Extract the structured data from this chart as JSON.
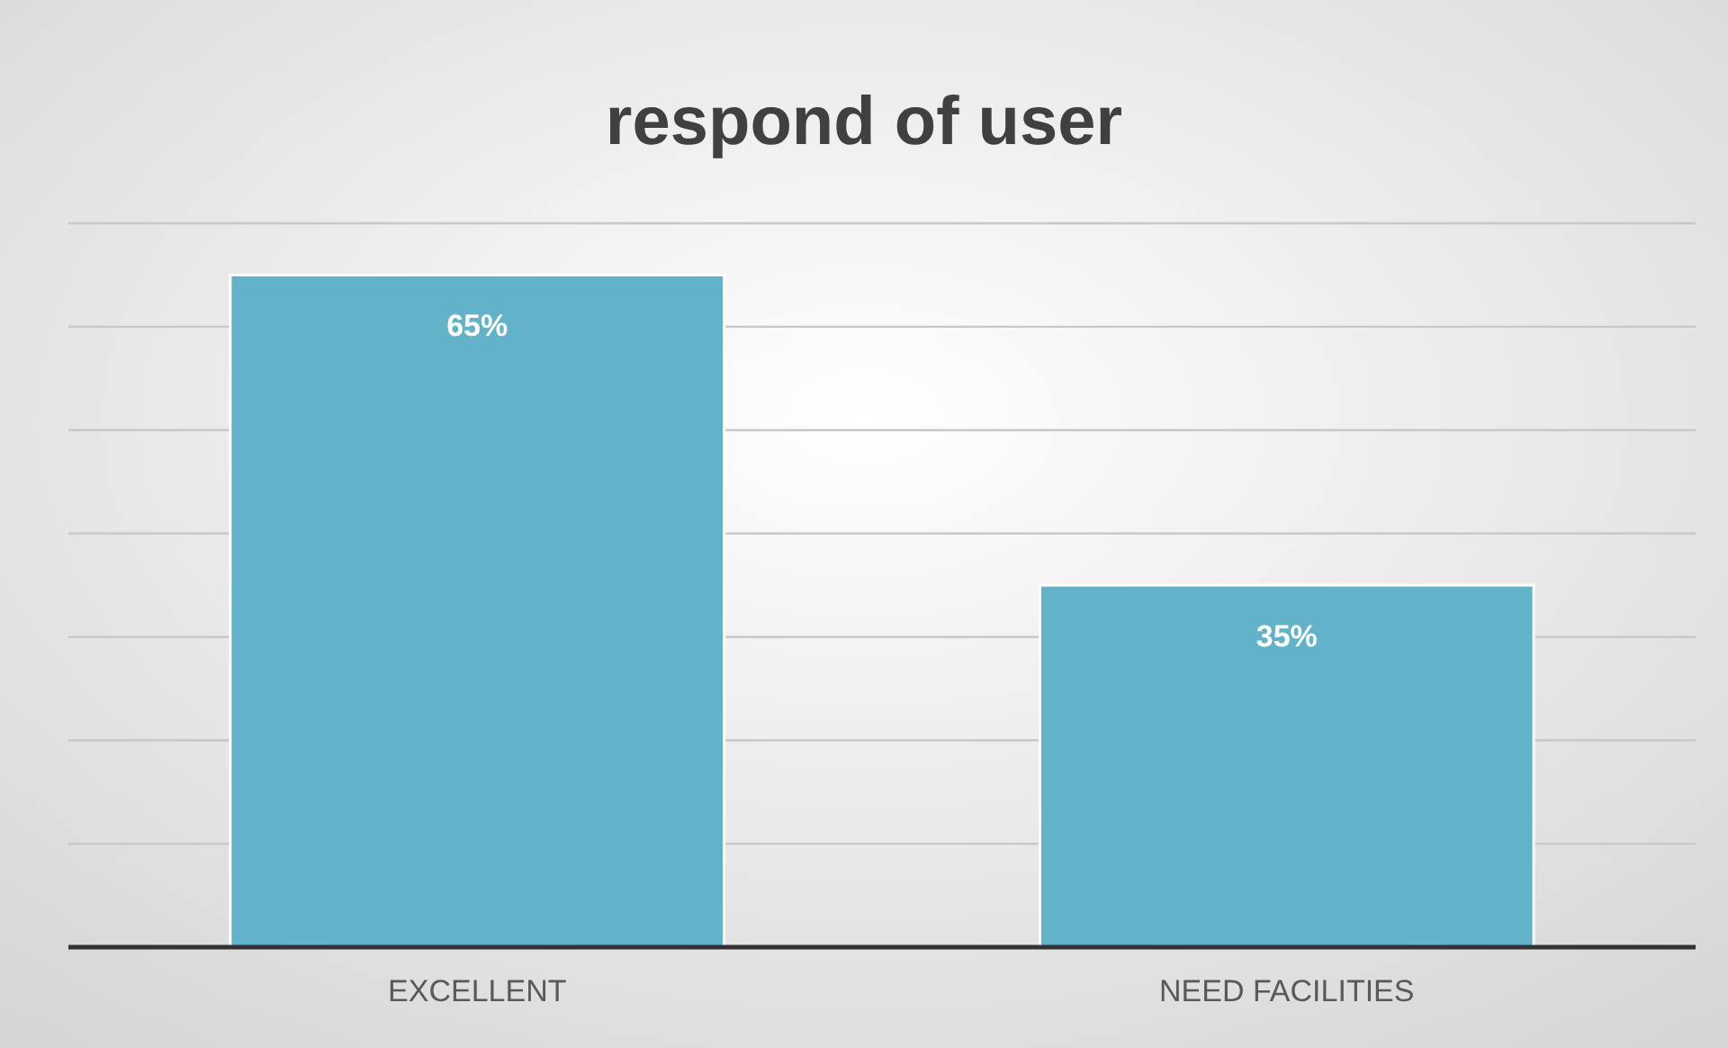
{
  "chart_data": {
    "type": "bar",
    "title": "respond of user",
    "categories": [
      "EXCELLENT",
      "NEED FACILITIES"
    ],
    "values": [
      65,
      35
    ],
    "value_labels": [
      "65%",
      "35%"
    ],
    "color": "#62b3ca",
    "ylim": [
      0,
      70
    ],
    "yticks": [
      {
        "value": 0,
        "label": null
      },
      {
        "value": 10,
        "label": null
      },
      {
        "value": 20,
        "label": null
      },
      {
        "value": 30,
        "label": null
      },
      {
        "value": 40,
        "label": null
      },
      {
        "value": 50,
        "label": null
      },
      {
        "value": 60,
        "label": null
      },
      {
        "value": 70,
        "label": null
      }
    ],
    "grid": "y",
    "tick_labels": "x"
  }
}
